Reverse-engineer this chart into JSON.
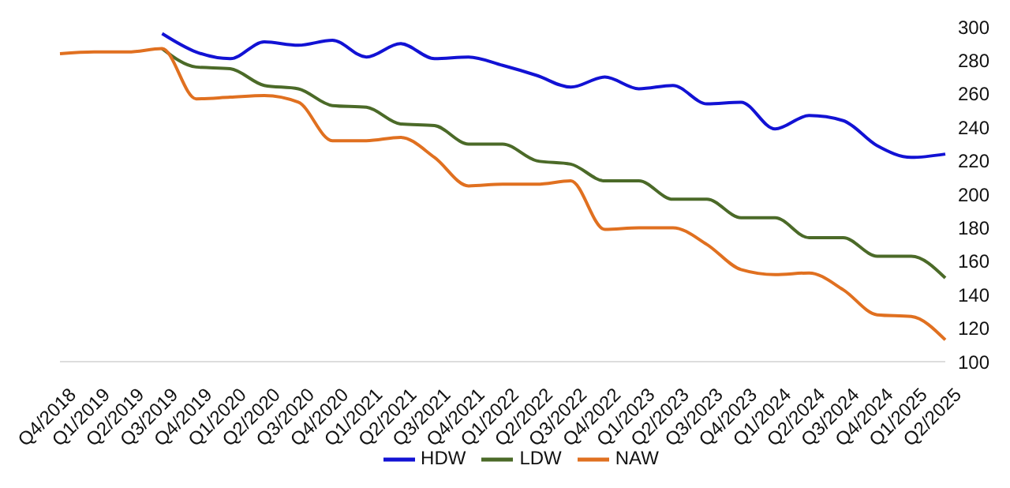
{
  "chart_data": {
    "type": "line",
    "categories": [
      "Q4/2018",
      "Q1/2019",
      "Q2/2019",
      "Q3/2019",
      "Q4/2019",
      "Q1/2020",
      "Q2/2020",
      "Q3/2020",
      "Q4/2020",
      "Q1/2021",
      "Q2/2021",
      "Q3/2021",
      "Q4/2021",
      "Q1/2022",
      "Q2/2022",
      "Q3/2022",
      "Q4/2022",
      "Q1/2023",
      "Q2/2023",
      "Q3/2023",
      "Q4/2023",
      "Q1/2024",
      "Q2/2024",
      "Q3/2024",
      "Q4/2024",
      "Q1/2025",
      "Q2/2025"
    ],
    "series": [
      {
        "name": "HDW",
        "color": "#1212d4",
        "values": [
          null,
          null,
          null,
          296,
          285,
          281,
          291,
          289,
          292,
          282,
          290,
          281,
          282,
          277,
          271,
          264,
          270,
          263,
          265,
          254,
          255,
          239,
          247,
          244,
          229,
          222,
          224
        ]
      },
      {
        "name": "LDW",
        "color": "#4b6a28",
        "values": [
          null,
          null,
          null,
          287,
          276,
          275,
          265,
          263,
          253,
          252,
          242,
          241,
          230,
          230,
          220,
          218,
          208,
          208,
          197,
          197,
          186,
          186,
          174,
          174,
          163,
          163,
          150
        ]
      },
      {
        "name": "NAW",
        "color": "#e07020",
        "values": [
          284,
          285,
          285,
          287,
          257,
          258,
          259,
          255,
          232,
          232,
          234,
          222,
          205,
          206,
          206,
          208,
          179,
          180,
          180,
          170,
          155,
          152,
          153,
          143,
          128,
          127,
          113
        ]
      }
    ],
    "ylim": [
      100,
      300
    ],
    "yticks": [
      100,
      120,
      140,
      160,
      180,
      200,
      220,
      240,
      260,
      280,
      300
    ],
    "grid": false,
    "legend": "bottom",
    "marker": "none",
    "line_style": "solid"
  }
}
